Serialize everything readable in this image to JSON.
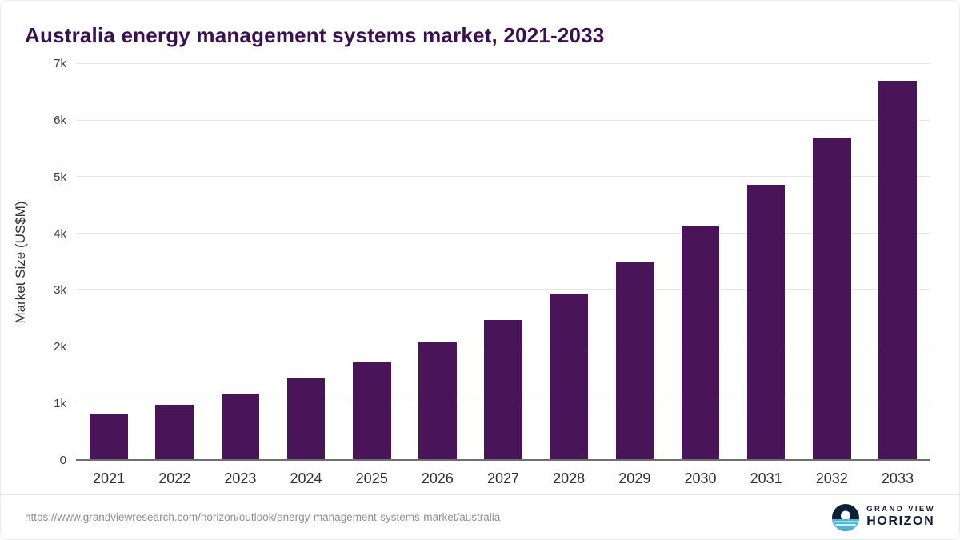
{
  "title": "Australia energy management systems market, 2021-2033",
  "colors": {
    "bar": "#4a1458",
    "title": "#3b1053",
    "gridline": "#e6e6e6",
    "axis": "#6f6f6f",
    "logo_navy": "#0e2033",
    "logo_teal": "#49b8d6"
  },
  "footer": {
    "source_url": "https://www.grandviewresearch.com/horizon/outlook/energy-management-systems-market/australia",
    "brand_top": "GRAND VIEW",
    "brand_bottom": "HORIZON"
  },
  "chart_data": {
    "type": "bar",
    "title": "Australia energy management systems market, 2021-2033",
    "categories": [
      "2021",
      "2022",
      "2023",
      "2024",
      "2025",
      "2026",
      "2027",
      "2028",
      "2029",
      "2030",
      "2031",
      "2032",
      "2033"
    ],
    "values": [
      800,
      960,
      1160,
      1430,
      1720,
      2070,
      2470,
      2940,
      3480,
      4130,
      4860,
      5700,
      6700
    ],
    "xlabel": "",
    "ylabel": "Market Size (US$M)",
    "ylim": [
      0,
      7000
    ],
    "yticks": [
      0,
      1000,
      2000,
      3000,
      4000,
      5000,
      6000,
      7000
    ],
    "ytick_labels": [
      "0",
      "1k",
      "2k",
      "3k",
      "4k",
      "5k",
      "6k",
      "7k"
    ],
    "grid": true,
    "legend": false
  }
}
